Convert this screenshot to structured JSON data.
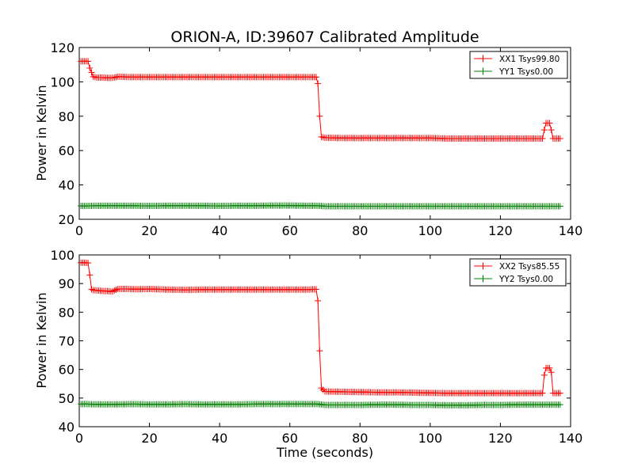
{
  "title": "ORION-A, ID:39607 Calibrated Amplitude",
  "chart_data": [
    {
      "type": "line",
      "title": "ORION-A, ID:39607 Calibrated Amplitude",
      "xlabel": "",
      "ylabel": "Power in Kelvin",
      "xlim": [
        0,
        140
      ],
      "ylim": [
        20,
        120
      ],
      "xticks": [
        "0",
        "20",
        "40",
        "60",
        "80",
        "100",
        "120",
        "140"
      ],
      "yticks": [
        "20",
        "40",
        "60",
        "80",
        "100",
        "120"
      ],
      "grid": false,
      "legend_position": "top-right",
      "marker": "+",
      "series": [
        {
          "name": "XX1 Tsys99.80",
          "color": "#ff0000",
          "x": [
            0.5,
            1.5,
            2.5,
            3,
            4,
            5,
            6,
            7,
            8,
            9,
            10,
            11,
            12,
            14,
            16,
            20,
            25,
            30,
            35,
            40,
            45,
            50,
            55,
            60,
            65,
            67.5,
            68,
            68.5,
            69,
            70,
            75,
            80,
            85,
            90,
            95,
            100,
            105,
            110,
            115,
            120,
            125,
            130,
            132,
            132.5,
            133,
            134,
            134.5,
            135,
            136,
            137
          ],
          "y": [
            112,
            112,
            112,
            108,
            103,
            102.5,
            102.5,
            102.5,
            102.3,
            102.3,
            102.5,
            103,
            103,
            102.8,
            102.8,
            102.8,
            102.8,
            102.8,
            102.8,
            102.8,
            102.8,
            102.8,
            102.8,
            102.8,
            102.8,
            102.8,
            99,
            80,
            68,
            67.5,
            67.3,
            67.3,
            67.3,
            67.3,
            67.3,
            67.3,
            67.0,
            67.0,
            67.0,
            67.0,
            67.0,
            67.0,
            67.0,
            72,
            76,
            76,
            72,
            67,
            67,
            67
          ]
        },
        {
          "name": "YY1 Tsys0.00",
          "color": "#008000",
          "x": [
            0.5,
            2,
            5,
            10,
            15,
            20,
            25,
            30,
            35,
            40,
            45,
            50,
            55,
            60,
            65,
            68,
            70,
            75,
            80,
            85,
            90,
            95,
            100,
            105,
            110,
            115,
            120,
            125,
            130,
            135,
            137
          ],
          "y": [
            27.8,
            27.8,
            27.9,
            27.9,
            27.9,
            27.8,
            27.9,
            27.9,
            27.9,
            27.8,
            27.9,
            27.9,
            28.0,
            28.0,
            27.9,
            27.9,
            27.6,
            27.6,
            27.6,
            27.6,
            27.6,
            27.6,
            27.6,
            27.6,
            27.6,
            27.6,
            27.6,
            27.6,
            27.6,
            27.6,
            27.6
          ]
        }
      ]
    },
    {
      "type": "line",
      "title": "",
      "xlabel": "Time (seconds)",
      "ylabel": "Power in Kelvin",
      "xlim": [
        0,
        140
      ],
      "ylim": [
        40,
        100
      ],
      "xticks": [
        "0",
        "20",
        "40",
        "60",
        "80",
        "100",
        "120",
        "140"
      ],
      "yticks": [
        "40",
        "50",
        "60",
        "70",
        "80",
        "90",
        "100"
      ],
      "grid": false,
      "legend_position": "top-right",
      "marker": "+",
      "series": [
        {
          "name": "XX2 Tsys85.55",
          "color": "#ff0000",
          "x": [
            0.5,
            1.5,
            2.5,
            3,
            3.5,
            4,
            5,
            6,
            7,
            8,
            9,
            9.5,
            10,
            11,
            12,
            14,
            16,
            20,
            25,
            30,
            35,
            40,
            45,
            50,
            55,
            60,
            65,
            67.5,
            68,
            68.5,
            69,
            70,
            75,
            80,
            85,
            90,
            95,
            100,
            105,
            110,
            115,
            120,
            125,
            130,
            132,
            132.5,
            133,
            134,
            134.5,
            135,
            136,
            137
          ],
          "y": [
            97.3,
            97.3,
            97.2,
            93,
            88,
            87.7,
            87.6,
            87.5,
            87.4,
            87.4,
            87.2,
            87.2,
            87.6,
            88.1,
            88.1,
            88.1,
            88.0,
            88.1,
            87.9,
            87.8,
            87.9,
            87.9,
            87.9,
            87.9,
            87.9,
            87.9,
            87.9,
            88,
            84,
            66.5,
            53.5,
            52.3,
            52.2,
            52.1,
            52.0,
            52.0,
            51.9,
            51.8,
            51.7,
            51.7,
            51.7,
            51.7,
            51.7,
            51.7,
            51.7,
            58,
            60.5,
            60.5,
            59,
            51.7,
            51.7,
            51.7
          ]
        },
        {
          "name": "YY2 Tsys0.00",
          "color": "#008000",
          "x": [
            0.5,
            2,
            5,
            10,
            15,
            20,
            25,
            30,
            35,
            40,
            45,
            50,
            55,
            60,
            65,
            68,
            70,
            75,
            80,
            85,
            90,
            95,
            100,
            105,
            110,
            115,
            120,
            125,
            130,
            135,
            137
          ],
          "y": [
            47.9,
            47.9,
            47.8,
            47.8,
            47.9,
            47.8,
            47.8,
            47.9,
            47.8,
            47.8,
            47.8,
            47.9,
            47.9,
            47.9,
            47.9,
            47.9,
            47.6,
            47.6,
            47.6,
            47.7,
            47.7,
            47.6,
            47.6,
            47.5,
            47.5,
            47.6,
            47.6,
            47.7,
            47.7,
            47.7,
            47.7
          ]
        }
      ]
    }
  ]
}
